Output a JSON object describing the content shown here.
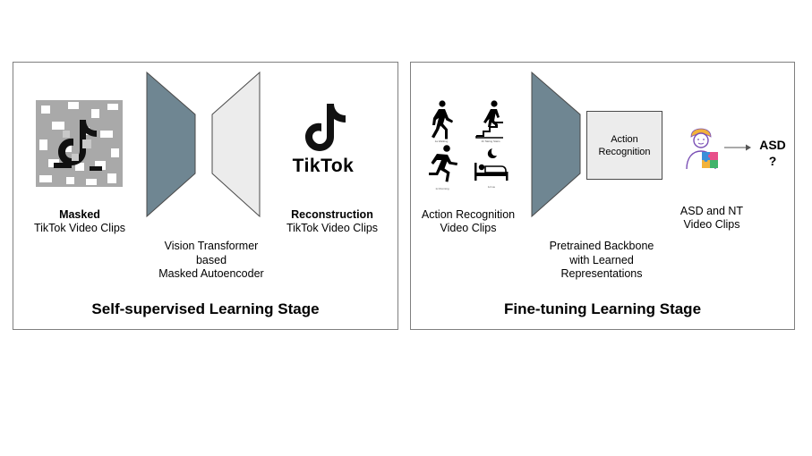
{
  "left_panel": {
    "masked_label_bold": "Masked",
    "masked_label": "TikTok Video Clips",
    "model_line1": "Vision Transformer",
    "model_line2": "based",
    "model_line3": "Masked Autoencoder",
    "reconstruction_label_bold": "Reconstruction",
    "reconstruction_label": "TikTok Video Clips",
    "logo_text": "TikTok",
    "stage_title": "Self-supervised Learning Stage"
  },
  "right_panel": {
    "action_line1": "Action Recognition",
    "action_line2": "Video Clips",
    "head_line1": "Action",
    "head_line2": "Recognition",
    "backbone_line1": "Pretrained Backbone",
    "backbone_line2": "with Learned",
    "backbone_line3": "Representations",
    "asd_nt_line1": "ASD and NT",
    "asd_nt_line2": "Video Clips",
    "output_line1": "ASD",
    "output_line2": "?",
    "stage_title": "Fine-tuning Learning Stage"
  },
  "icons": [
    "walking-icon",
    "climbing-stairs-icon",
    "running-icon",
    "sleeping-icon",
    "child-puzzle-icon",
    "tiktok-logo-icon",
    "tiktok-masked-icon"
  ],
  "colors": {
    "encoder_fill": "#6f8692",
    "decoder_fill": "#ececec",
    "outline": "#4a4a4a",
    "panel_border": "#7f7f7f"
  }
}
